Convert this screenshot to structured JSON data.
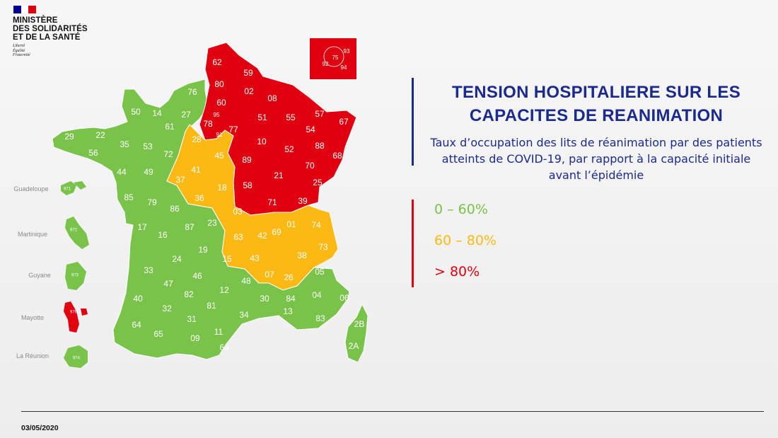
{
  "logo": {
    "lines": [
      "MINISTÈRE",
      "DES SOLIDARITÉS",
      "ET DE LA SANTÉ"
    ],
    "motto": [
      "Liberté",
      "Égalité",
      "Fraternité"
    ]
  },
  "colors": {
    "green": "#79c34a",
    "orange": "#fdb913",
    "red": "#e1000f",
    "navy": "#1a2a8f"
  },
  "title": "TENSION HOSPITALIERE SUR LES CAPACITES DE REANIMATION",
  "subtitle": "Taux d’occupation des lits de réanimation par des patients atteints de COVID-19, par rapport à la capacité initiale avant l’épidémie",
  "legend": [
    {
      "label": "0 – 60%",
      "color": "#79c34a"
    },
    {
      "label": "60 – 80%",
      "color": "#fdb913"
    },
    {
      "label": "> 80%",
      "color": "#e1000f"
    }
  ],
  "overseas": [
    {
      "name": "Guadeloupe",
      "code": "971"
    },
    {
      "name": "Martinique",
      "code": "972"
    },
    {
      "name": "Guyane",
      "code": "973"
    },
    {
      "name": "Mayotte",
      "code": "976"
    },
    {
      "name": "La Réunion",
      "code": "974"
    }
  ],
  "paris_inset": [
    "75",
    "92",
    "93",
    "94"
  ],
  "departments": {
    "red": [
      "62",
      "59",
      "80",
      "02",
      "08",
      "60",
      "95",
      "78",
      "77",
      "91",
      "51",
      "55",
      "57",
      "67",
      "54",
      "88",
      "68",
      "10",
      "52",
      "89",
      "70",
      "21",
      "58",
      "71",
      "25",
      "39"
    ],
    "orange": [
      "28",
      "45",
      "41",
      "37",
      "18",
      "36",
      "03",
      "01",
      "74",
      "63",
      "42",
      "69",
      "73",
      "38",
      "15",
      "43",
      "07",
      "26"
    ],
    "green": [
      "76",
      "50",
      "14",
      "27",
      "61",
      "29",
      "22",
      "56",
      "35",
      "53",
      "72",
      "44",
      "49",
      "85",
      "79",
      "86",
      "17",
      "16",
      "87",
      "23",
      "24",
      "19",
      "33",
      "46",
      "47",
      "82",
      "40",
      "32",
      "12",
      "48",
      "81",
      "30",
      "84",
      "13",
      "64",
      "31",
      "34",
      "65",
      "09",
      "11",
      "66",
      "05",
      "04",
      "06",
      "83",
      "2B",
      "2A"
    ]
  },
  "date": "03/05/2020"
}
